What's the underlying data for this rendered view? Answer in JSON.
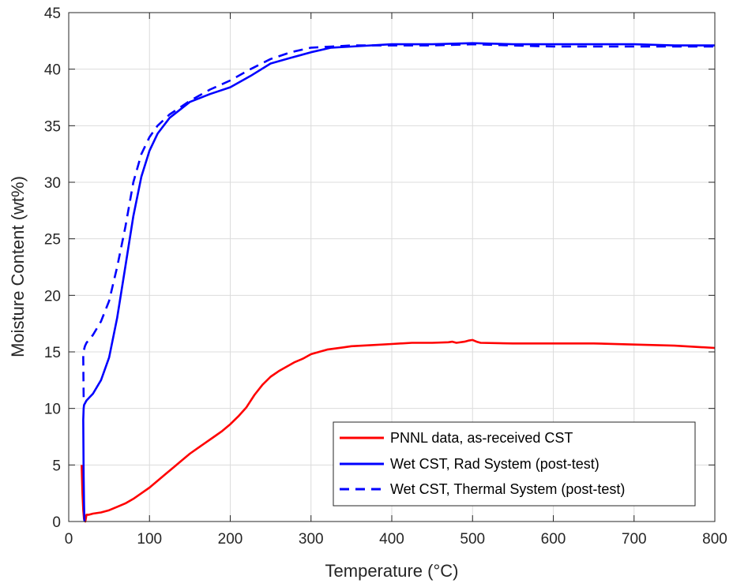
{
  "chart_data": {
    "type": "line",
    "title": "",
    "xlabel": "Temperature (°C)",
    "ylabel": "Moisture Content (wt%)",
    "xlim": [
      0,
      800
    ],
    "ylim": [
      0,
      45
    ],
    "xticks": [
      "0",
      "100",
      "200",
      "300",
      "400",
      "500",
      "600",
      "700",
      "800"
    ],
    "yticks": [
      "0",
      "5",
      "10",
      "15",
      "20",
      "25",
      "30",
      "35",
      "40",
      "45"
    ],
    "grid": true,
    "legend_position": "bottom-right",
    "series": [
      {
        "name": "PNNL data, as-received CST",
        "color": "#ff0000",
        "style": "solid",
        "x": [
          16,
          17,
          18,
          19,
          20,
          20.5,
          22,
          25,
          30,
          40,
          50,
          60,
          70,
          80,
          90,
          100,
          110,
          120,
          130,
          140,
          150,
          160,
          170,
          180,
          190,
          200,
          210,
          220,
          230,
          240,
          250,
          260,
          270,
          280,
          290,
          300,
          310,
          320,
          330,
          340,
          350,
          375,
          400,
          425,
          450,
          470,
          475,
          480,
          490,
          495,
          500,
          505,
          510,
          550,
          600,
          650,
          700,
          750,
          800
        ],
        "y": [
          5,
          2.5,
          1,
          0.2,
          0.1,
          0,
          0.6,
          0.6,
          0.7,
          0.8,
          1.0,
          1.3,
          1.6,
          2.0,
          2.5,
          3.0,
          3.6,
          4.2,
          4.8,
          5.4,
          6.0,
          6.5,
          7.0,
          7.5,
          8.0,
          8.6,
          9.3,
          10.1,
          11.2,
          12.1,
          12.8,
          13.3,
          13.7,
          14.1,
          14.4,
          14.8,
          15.0,
          15.2,
          15.3,
          15.4,
          15.5,
          15.6,
          15.7,
          15.8,
          15.8,
          15.85,
          15.9,
          15.8,
          15.9,
          16.0,
          16.05,
          15.9,
          15.8,
          15.75,
          15.75,
          15.75,
          15.65,
          15.55,
          15.35
        ]
      },
      {
        "name": "Wet CST, Rad System (post-test)",
        "color": "#0000ff",
        "style": "solid",
        "x": [
          19.5,
          19,
          18.5,
          18.2,
          18,
          18.5,
          19,
          22,
          30,
          40,
          50,
          60,
          70,
          80,
          90,
          100,
          110,
          125,
          150,
          175,
          200,
          225,
          250,
          275,
          300,
          325,
          350,
          400,
          450,
          500,
          550,
          600,
          650,
          700,
          750,
          800
        ],
        "y": [
          0,
          1.5,
          4,
          7,
          9,
          10,
          10.3,
          10.7,
          11.3,
          12.5,
          14.5,
          18,
          22.5,
          27,
          30.5,
          32.8,
          34.3,
          35.7,
          37.1,
          37.8,
          38.4,
          39.4,
          40.5,
          41.0,
          41.5,
          41.9,
          42.0,
          42.2,
          42.2,
          42.3,
          42.2,
          42.2,
          42.2,
          42.2,
          42.1,
          42.1
        ]
      },
      {
        "name": "Wet CST, Thermal System (post-test)",
        "color": "#0000ff",
        "style": "dashed",
        "x": [
          18.5,
          18.2,
          18,
          18.2,
          19,
          20,
          22,
          30,
          40,
          50,
          60,
          70,
          80,
          90,
          100,
          110,
          125,
          150,
          175,
          200,
          225,
          250,
          275,
          300,
          325,
          350,
          400,
          450,
          500,
          550,
          600,
          650,
          700,
          750,
          800
        ],
        "y": [
          11,
          13,
          14.5,
          15,
          15.2,
          15.5,
          15.8,
          16.5,
          17.7,
          19.5,
          22.5,
          26,
          30,
          32.5,
          34.0,
          35.0,
          36.0,
          37.2,
          38.2,
          39.0,
          40.0,
          40.9,
          41.5,
          41.9,
          42.0,
          42.1,
          42.1,
          42.1,
          42.2,
          42.1,
          42.0,
          42.0,
          42.0,
          42.0,
          42.0
        ]
      }
    ]
  }
}
